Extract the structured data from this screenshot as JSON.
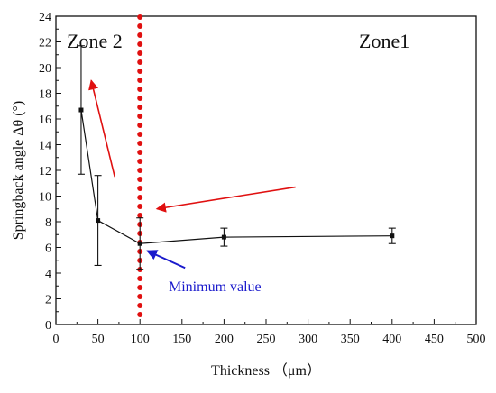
{
  "chart_data": {
    "type": "line",
    "xlabel": "Thickness （μm）",
    "ylabel": "Springback angle Δθ (°)",
    "xlim": [
      0,
      500
    ],
    "ylim": [
      0,
      24
    ],
    "xticks": [
      0,
      50,
      100,
      150,
      200,
      250,
      300,
      350,
      400,
      450,
      500
    ],
    "yticks": [
      0,
      2,
      4,
      6,
      8,
      10,
      12,
      14,
      16,
      18,
      20,
      22,
      24
    ],
    "grid": false,
    "series": [
      {
        "x": [
          30,
          50,
          100,
          200,
          400
        ],
        "y": [
          16.7,
          8.1,
          6.3,
          6.8,
          6.9
        ],
        "err": [
          5.0,
          3.5,
          2.0,
          0.7,
          0.6
        ],
        "color": "#111111"
      }
    ],
    "divider": {
      "x": 100,
      "color": "#e01010",
      "style": "dotted"
    },
    "zones": [
      {
        "label": "Zone 2",
        "position": "top-left"
      },
      {
        "label": "Zone1",
        "position": "top-right"
      }
    ],
    "annotations": [
      {
        "text": "Minimum value",
        "x": 100,
        "y": 6.3,
        "color": "#1a1acc"
      }
    ],
    "trend_arrows": [
      {
        "from": [
          70,
          11.5
        ],
        "to": [
          42,
          19
        ],
        "color": "#e01010"
      },
      {
        "from": [
          285,
          10.7
        ],
        "to": [
          120,
          9.0
        ],
        "color": "#e01010"
      }
    ]
  }
}
